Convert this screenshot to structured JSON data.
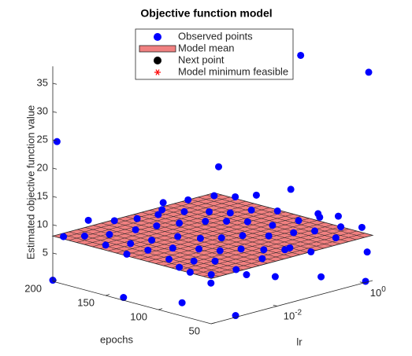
{
  "chart_data": {
    "type": "scatter3d",
    "title": "Objective function model",
    "xlabel": "lr",
    "ylabel": "epochs",
    "zlabel": "Estimated objective function value",
    "xscale": "log",
    "xlim": [
      0.0003,
      1.6
    ],
    "xticks": [
      {
        "value": 0.01,
        "label": "10^{-2}"
      },
      {
        "value": 1,
        "label": "10^{0}"
      }
    ],
    "ylim": [
      50,
      200
    ],
    "yticks": [
      50,
      100,
      150,
      200
    ],
    "zlim": [
      0,
      38
    ],
    "zticks": [
      5,
      10,
      15,
      20,
      25,
      30,
      35
    ],
    "legend": "top",
    "series": [
      {
        "name": "Observed points",
        "color": "#0000ff",
        "marker": "circle",
        "y": [
          55,
          55,
          55,
          55,
          55,
          55,
          55,
          75,
          75,
          75,
          75,
          75,
          75,
          75,
          95,
          95,
          95,
          95,
          95,
          95,
          95,
          115,
          115,
          115,
          115,
          115,
          115,
          115,
          135,
          135,
          135,
          135,
          135,
          135,
          135,
          155,
          155,
          155,
          155,
          155,
          155,
          155,
          175,
          175,
          175,
          175,
          175,
          175,
          175,
          195,
          195,
          195,
          195,
          195,
          195,
          195,
          117,
          50,
          196,
          125,
          200,
          133,
          95,
          50,
          80,
          65,
          65,
          50,
          50,
          95,
          65,
          110,
          155,
          110,
          75
        ],
        "x": [
          0.0004,
          0.0015,
          0.006,
          0.02,
          0.08,
          0.3,
          1.2,
          0.0004,
          0.0015,
          0.006,
          0.02,
          0.08,
          0.3,
          1.2,
          0.0004,
          0.0015,
          0.006,
          0.02,
          0.08,
          0.3,
          1.2,
          0.0004,
          0.0015,
          0.006,
          0.02,
          0.08,
          0.3,
          1.2,
          0.0004,
          0.0015,
          0.006,
          0.02,
          0.08,
          0.3,
          1.2,
          0.0004,
          0.0015,
          0.006,
          0.02,
          0.08,
          0.3,
          1.2,
          0.0004,
          0.0015,
          0.006,
          0.02,
          0.08,
          0.3,
          1.2,
          0.0004,
          0.0015,
          0.006,
          0.02,
          0.08,
          0.3,
          1.2,
          1.5,
          1.3,
          0.0003,
          0.03,
          0.0003,
          0.0003,
          0.0008,
          0.0011,
          0.0016,
          0.021,
          0.24,
          1.1,
          1.2,
          1.1,
          0.6,
          0.6,
          0.008,
          0.0016,
          0.008
        ],
        "values": [
          8.2,
          7.9,
          8.6,
          9.1,
          7.5,
          8.8,
          9.4,
          7.6,
          8.4,
          9.3,
          8.1,
          7.2,
          9.0,
          8.5,
          8.9,
          7.4,
          8.0,
          9.6,
          8.3,
          7.7,
          9.2,
          9.5,
          8.7,
          7.3,
          8.2,
          9.8,
          8.0,
          7.6,
          7.8,
          9.1,
          8.5,
          7.1,
          8.9,
          9.7,
          8.3,
          8.4,
          7.5,
          9.4,
          8.8,
          7.9,
          8.2,
          10.1,
          9.0,
          8.1,
          7.7,
          9.3,
          8.6,
          7.4,
          8.8,
          7.9,
          9.6,
          8.3,
          7.6,
          9.2,
          8.5,
          8.0,
          36.5,
          37,
          24.9,
          19.9,
          0.2,
          0.5,
          0.6,
          0.3,
          4.2,
          3.8,
          1.6,
          0.2,
          5.3,
          9.9,
          11.5,
          14,
          12,
          5.5,
          4.5
        ]
      },
      {
        "name": "Model mean",
        "color": "#f08080",
        "marker": "surface",
        "values": [
          8
        ]
      },
      {
        "name": "Next point",
        "color": "#000000",
        "marker": "circle"
      },
      {
        "name": "Model minimum feasible",
        "color": "#ff0000",
        "marker": "asterisk"
      }
    ]
  }
}
